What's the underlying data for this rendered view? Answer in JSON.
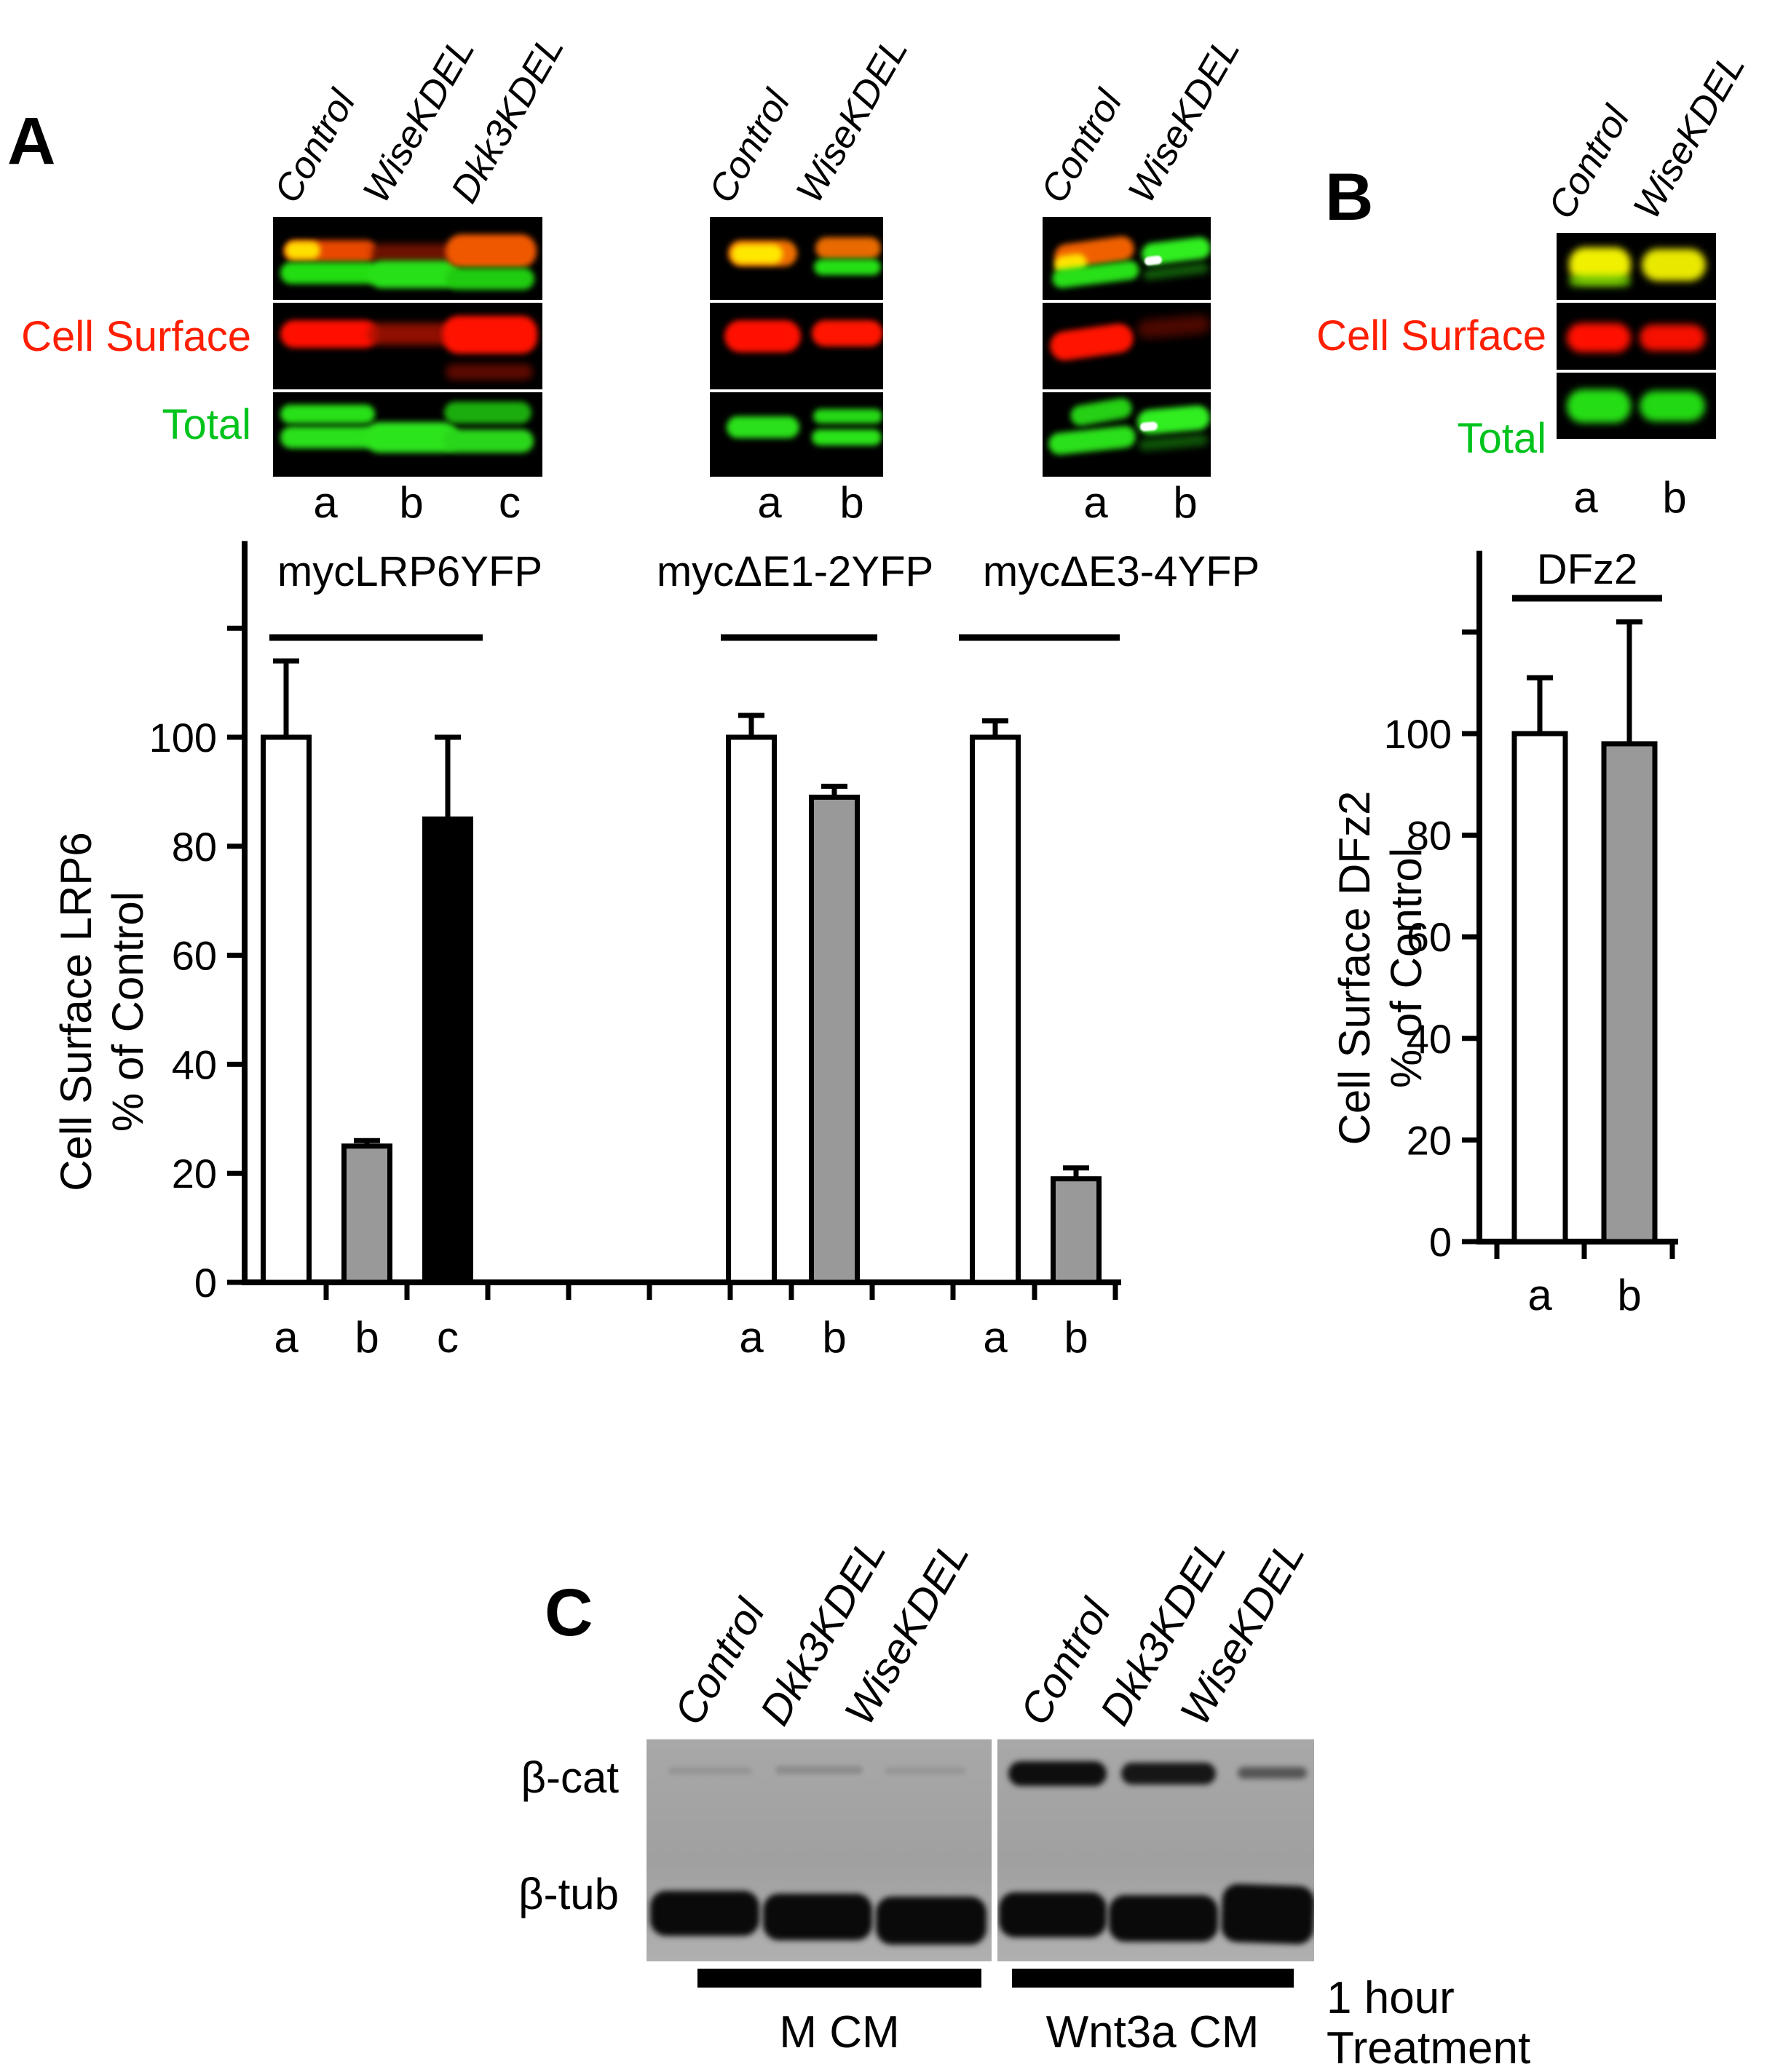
{
  "figure": {
    "background": "#ffffff"
  },
  "colors": {
    "cell_surface_label": "#ff1e00",
    "total_label": "#00c41c",
    "bar_white": "#ffffff",
    "bar_gray": "#999999",
    "bar_black": "#000000"
  },
  "panels": {
    "A": {
      "letter": "A",
      "cell_surface_label": "Cell Surface",
      "total_label": "Total",
      "groups": [
        {
          "lanes": [
            "Control",
            "WiseKDEL",
            "Dkk3KDEL"
          ],
          "letters": [
            "a",
            "b",
            "c"
          ]
        },
        {
          "lanes": [
            "Control",
            "WiseKDEL"
          ],
          "letters": [
            "a",
            "b"
          ]
        },
        {
          "lanes": [
            "Control",
            "WiseKDEL"
          ],
          "letters": [
            "a",
            "b"
          ]
        }
      ]
    },
    "B": {
      "letter": "B",
      "cell_surface_label": "Cell Surface",
      "total_label": "Total",
      "lanes": [
        "Control",
        "WiseKDEL"
      ],
      "letters": [
        "a",
        "b"
      ]
    },
    "C": {
      "letter": "C",
      "lanes": [
        "Control",
        "Dkk3KDEL",
        "WiseKDEL",
        "Control",
        "Dkk3KDEL",
        "WiseKDEL"
      ],
      "beta_cat_label": "β-cat",
      "beta_tub_label": "β-tub",
      "group_labels": [
        "M CM",
        "Wnt3a CM"
      ],
      "note_lines": [
        "1 hour",
        "Treatment"
      ]
    }
  },
  "chart_data": [
    {
      "type": "bar",
      "title": "",
      "ylabel_lines": [
        "Cell Surface  LRP6",
        "% of Control"
      ],
      "yticks": [
        0,
        20,
        40,
        60,
        80,
        100
      ],
      "unlabeled_ytick": 120,
      "ylim": [
        0,
        136
      ],
      "grid": false,
      "categories": [
        "a",
        "b",
        "c",
        "a",
        "b",
        "a",
        "b"
      ],
      "values": [
        100,
        25,
        85,
        100,
        89,
        100,
        19
      ],
      "errors": [
        14,
        1,
        15,
        4,
        2,
        3,
        2
      ],
      "bar_styles": [
        "white",
        "gray",
        "black",
        "white",
        "gray",
        "white",
        "gray"
      ],
      "groups": [
        {
          "label": "mycLRP6YFP",
          "bars": [
            0,
            1,
            2
          ]
        },
        {
          "label": "mycΔE1-2YFP",
          "bars": [
            3,
            4
          ]
        },
        {
          "label": "mycΔE3-4YFP",
          "bars": [
            5,
            6
          ]
        }
      ]
    },
    {
      "type": "bar",
      "title": "",
      "ylabel_lines": [
        "Cell Surface DFz2",
        "% of Control"
      ],
      "yticks": [
        0,
        20,
        40,
        60,
        80,
        100
      ],
      "unlabeled_ytick": 120,
      "ylim": [
        0,
        136
      ],
      "grid": false,
      "categories": [
        "a",
        "b"
      ],
      "values": [
        100,
        98
      ],
      "errors": [
        11,
        24
      ],
      "bar_styles": [
        "white",
        "gray"
      ],
      "groups": [
        {
          "label": "DFz2",
          "bars": [
            0,
            1
          ]
        }
      ]
    }
  ]
}
